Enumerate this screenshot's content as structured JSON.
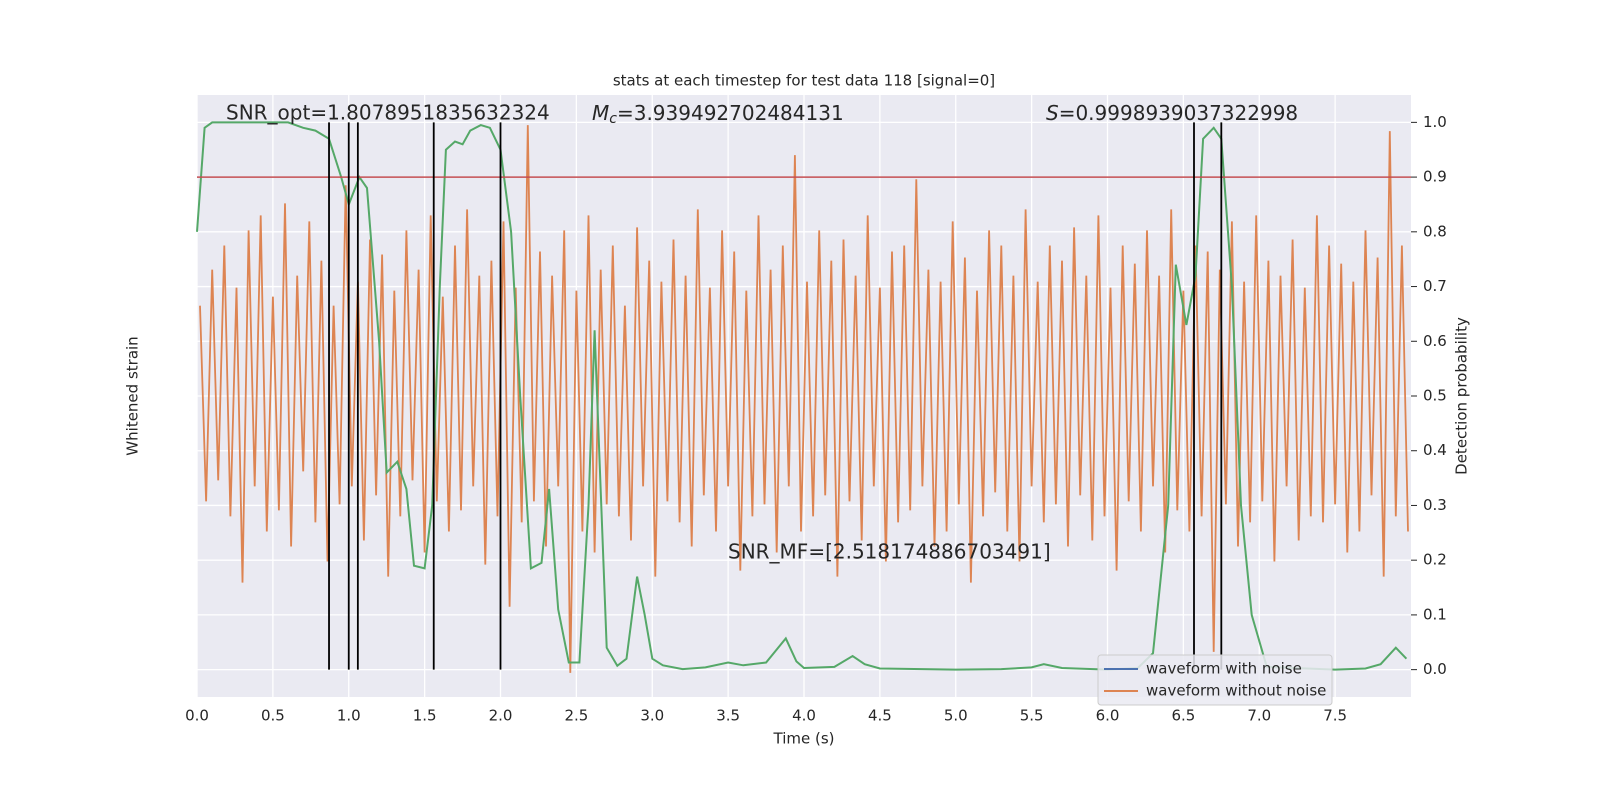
{
  "chart_data": {
    "type": "line",
    "title": "stats at each timestep for test data 118 [signal=0]",
    "xlabel": "Time (s)",
    "ylabel": "Whitened strain",
    "y2label": "Detection probability",
    "xlim": [
      0,
      8
    ],
    "ylim": [
      -1,
      1
    ],
    "y2lim": [
      -0.05,
      1.05
    ],
    "xticks": [
      {
        "value": 0,
        "label": "0.0"
      },
      0.5,
      {
        "value": 1,
        "label": "1.0"
      },
      1.5,
      {
        "value": 2,
        "label": "2.0"
      },
      2.5,
      {
        "value": 3,
        "label": "3.0"
      },
      3.5,
      {
        "value": 4,
        "label": "4.0"
      },
      4.5,
      {
        "value": 5,
        "label": "5.0"
      },
      5.5,
      {
        "value": 6,
        "label": "6.0"
      },
      6.5,
      {
        "value": 7,
        "label": "7.0"
      },
      7.5
    ],
    "y2ticks": [
      {
        "value": 0,
        "label": "0.0"
      },
      0.1,
      0.2,
      0.3,
      0.4,
      0.5,
      0.6,
      0.7,
      0.8,
      0.9,
      {
        "value": 1,
        "label": "1.0"
      }
    ],
    "grid": true,
    "legend": "lower right",
    "annotations": {
      "snr_opt": "SNR_opt=1.8078951835632324",
      "mc": {
        "symbol": "M",
        "subscript": "c",
        "text": "=3.939492702484131"
      },
      "s": {
        "symbol": "S",
        "text": "=0.9998939037322998"
      },
      "snr_mf": "SNR_MF=[2.518174886703491]"
    },
    "threshold": {
      "value": 0.9,
      "color": "#c44e52"
    },
    "vlines": {
      "color": "#000000",
      "values": [
        0.87,
        1.0,
        1.06,
        1.56,
        2.0,
        6.57,
        6.75
      ]
    },
    "series": [
      {
        "name": "waveform with noise",
        "color": "#4c72b0",
        "values": []
      },
      {
        "name": "waveform without noise",
        "color": "#dd8452",
        "values": [
          0.3,
          -0.35,
          0.42,
          -0.28,
          0.5,
          -0.4,
          0.36,
          -0.62,
          0.55,
          -0.3,
          0.6,
          -0.45,
          0.33,
          -0.38,
          0.64,
          -0.5,
          0.4,
          -0.25,
          0.58,
          -0.42,
          0.45,
          -0.55,
          0.3,
          -0.36,
          0.7,
          -0.3,
          0.38,
          -0.48,
          0.52,
          -0.33,
          0.47,
          -0.6,
          0.35,
          -0.4,
          0.55,
          -0.28,
          0.42,
          -0.52,
          0.6,
          -0.35,
          0.33,
          -0.45,
          0.5,
          -0.38,
          0.62,
          -0.3,
          0.4,
          -0.56,
          0.45,
          -0.4,
          0.58,
          -0.7,
          0.36,
          -0.42,
          0.9,
          -0.35,
          0.48,
          -0.5,
          0.4,
          -0.3,
          0.55,
          -0.92,
          0.35,
          -0.45,
          0.6,
          -0.52,
          0.42,
          -0.36,
          0.5,
          -0.4,
          0.3,
          -0.48,
          0.56,
          -0.3,
          0.45,
          -0.6,
          0.38,
          -0.35,
          0.52,
          -0.42,
          0.4,
          -0.5,
          0.62,
          -0.33,
          0.36,
          -0.45,
          0.55,
          -0.3,
          0.48,
          -0.58,
          0.35,
          -0.4,
          0.6,
          -0.36,
          0.42,
          -0.52,
          0.5,
          -0.3,
          0.8,
          -0.45,
          0.38,
          -0.4,
          0.55,
          -0.33,
          0.45,
          -0.6,
          0.52,
          -0.35,
          0.4,
          -0.48,
          0.6,
          -0.3,
          0.36,
          -0.55,
          0.48,
          -0.42,
          0.5,
          -0.38,
          0.72,
          -0.3,
          0.42,
          -0.5,
          0.38,
          -0.45,
          0.58,
          -0.36,
          0.46,
          -0.62,
          0.35,
          -0.4,
          0.55,
          -0.32,
          0.5,
          -0.45,
          0.4,
          -0.55,
          0.62,
          -0.3,
          0.38,
          -0.42,
          0.5,
          -0.36,
          0.45,
          -0.5,
          0.56,
          -0.33,
          0.4,
          -0.48,
          0.6,
          -0.4,
          0.36,
          -0.58,
          0.5,
          -0.35,
          0.44,
          -0.45,
          0.55,
          -0.3,
          0.4,
          -0.52,
          0.62,
          -0.38,
          0.35,
          -0.45,
          0.5,
          -0.4,
          0.48,
          -0.85,
          0.42,
          -0.36,
          0.58,
          -0.5,
          0.38,
          -0.42,
          0.6,
          -0.35,
          0.45,
          -0.55,
          0.4,
          -0.3,
          0.52,
          -0.48,
          0.36,
          -0.4,
          0.6,
          -0.42,
          0.5,
          -0.36,
          0.44,
          -0.52,
          0.38,
          -0.45,
          0.55,
          -0.33,
          0.46,
          -0.6,
          0.88,
          -0.4,
          0.5,
          -0.45
        ]
      },
      {
        "name": null,
        "color": "#55a868",
        "axis": "y2",
        "x": [
          0,
          0.05,
          0.1,
          0.2,
          0.3,
          0.4,
          0.5,
          0.6,
          0.7,
          0.78,
          0.87,
          0.95,
          1.0,
          1.07,
          1.12,
          1.2,
          1.25,
          1.32,
          1.38,
          1.43,
          1.5,
          1.55,
          1.6,
          1.64,
          1.7,
          1.75,
          1.8,
          1.87,
          1.93,
          2.0,
          2.07,
          2.13,
          2.2,
          2.27,
          2.32,
          2.38,
          2.45,
          2.52,
          2.58,
          2.62,
          2.7,
          2.77,
          2.83,
          2.9,
          2.95,
          3.0,
          3.07,
          3.2,
          3.35,
          3.5,
          3.6,
          3.75,
          3.88,
          3.95,
          4.0,
          4.2,
          4.32,
          4.4,
          4.5,
          5.0,
          5.3,
          5.5,
          5.58,
          5.7,
          6.0,
          6.2,
          6.3,
          6.4,
          6.45,
          6.52,
          6.58,
          6.63,
          6.7,
          6.75,
          6.82,
          6.88,
          6.95,
          7.05,
          7.5,
          7.7,
          7.8,
          7.9,
          7.97
        ],
        "values": [
          0.8,
          0.99,
          1.0,
          1.0,
          1.0,
          1.0,
          1.0,
          1.0,
          0.99,
          0.985,
          0.97,
          0.9,
          0.85,
          0.9,
          0.88,
          0.6,
          0.36,
          0.38,
          0.33,
          0.19,
          0.185,
          0.3,
          0.7,
          0.95,
          0.965,
          0.96,
          0.985,
          0.995,
          0.99,
          0.95,
          0.8,
          0.5,
          0.185,
          0.195,
          0.33,
          0.11,
          0.013,
          0.013,
          0.3,
          0.62,
          0.04,
          0.007,
          0.02,
          0.17,
          0.1,
          0.02,
          0.008,
          0.001,
          0.004,
          0.013,
          0.008,
          0.013,
          0.057,
          0.015,
          0.003,
          0.005,
          0.025,
          0.01,
          0.002,
          0.0,
          0.001,
          0.004,
          0.01,
          0.003,
          0.0,
          0.003,
          0.03,
          0.3,
          0.74,
          0.63,
          0.72,
          0.97,
          0.99,
          0.97,
          0.7,
          0.3,
          0.1,
          0.005,
          0.0,
          0.002,
          0.01,
          0.04,
          0.02
        ]
      }
    ]
  }
}
